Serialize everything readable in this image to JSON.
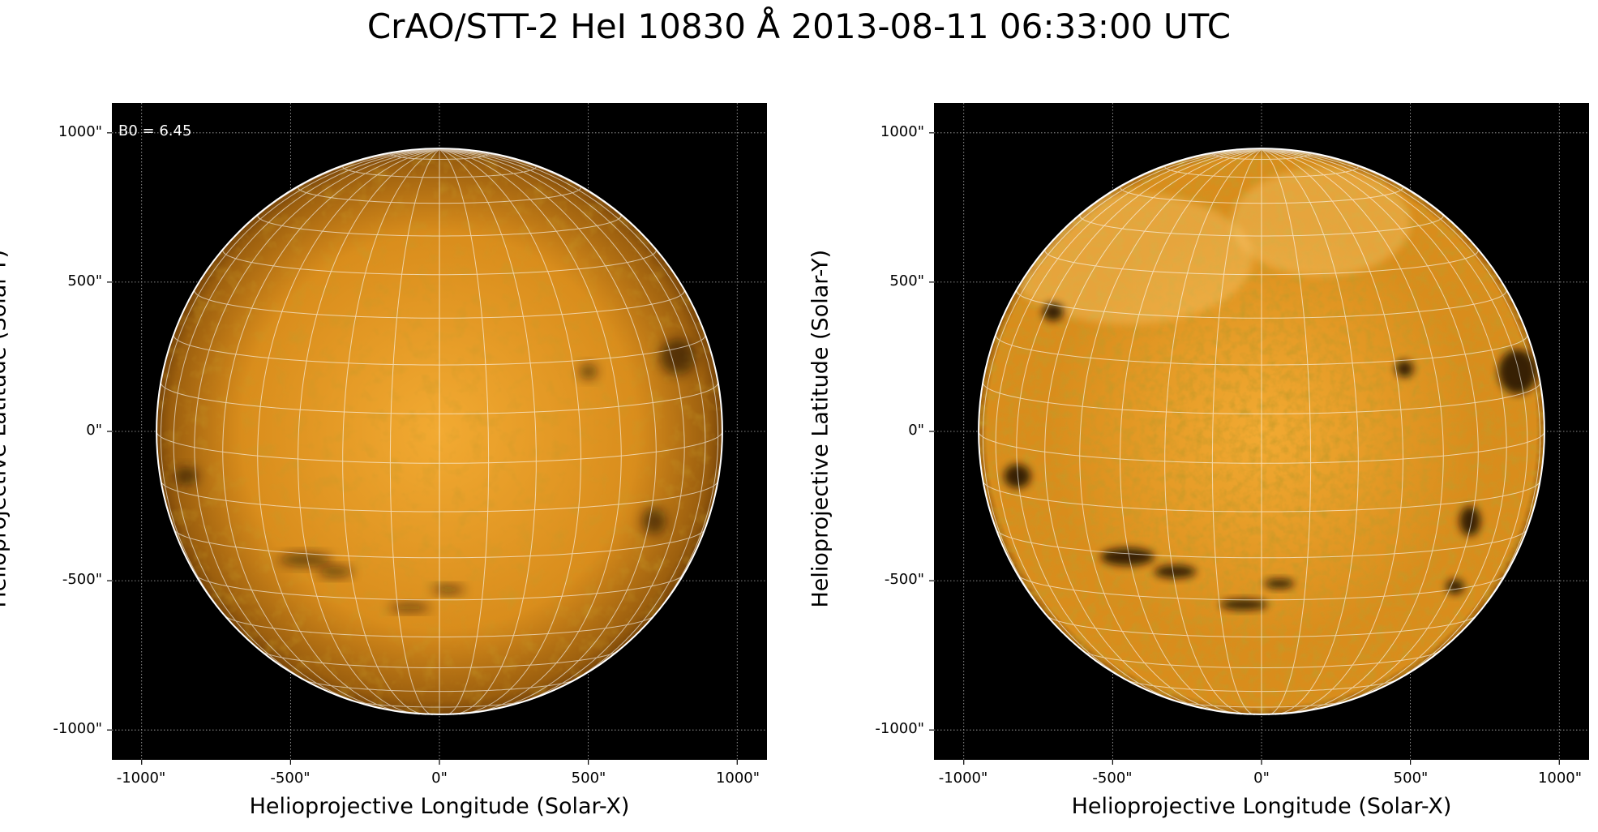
{
  "title": "CrAO/STT-2 HeI 10830 Å 2013-08-11 06:33:00 UTC",
  "colors": {
    "background": "#000000",
    "disk_light": "#f2aa32",
    "disk_base": "#d98d1c",
    "disk_dark": "#9c5f0e",
    "limb_line": "#ffffff",
    "grid_line": "#ffffff",
    "axis_grid": "#b0b0b0"
  },
  "axes_common": {
    "xlabel": "Helioprojective Longitude (Solar-X)",
    "ylabel": "Helioprojective Latitude (Solar-Y)",
    "xticks": [
      "-1000\"",
      "-500\"",
      "0\"",
      "500\"",
      "1000\""
    ],
    "yticks": [
      "1000\"",
      "500\"",
      "0\"",
      "-500\"",
      "-1000\""
    ],
    "tick_values": [
      -1000,
      -500,
      0,
      500,
      1000
    ],
    "xlim": [
      -1100,
      1100
    ],
    "ylim": [
      -1100,
      1100
    ]
  },
  "panels": [
    {
      "id": "left",
      "annotation": "B0 = 6.45",
      "style": "smooth",
      "dark_features": [
        {
          "x": -850,
          "y": -150,
          "rx": 40,
          "ry": 30
        },
        {
          "x": -450,
          "y": -430,
          "rx": 90,
          "ry": 22
        },
        {
          "x": -350,
          "y": -470,
          "rx": 60,
          "ry": 18
        },
        {
          "x": 500,
          "y": 200,
          "rx": 30,
          "ry": 25
        },
        {
          "x": 800,
          "y": 250,
          "rx": 60,
          "ry": 60
        },
        {
          "x": 720,
          "y": -300,
          "rx": 40,
          "ry": 45
        },
        {
          "x": -100,
          "y": -590,
          "rx": 70,
          "ry": 14
        },
        {
          "x": 30,
          "y": -530,
          "rx": 55,
          "ry": 14
        }
      ]
    },
    {
      "id": "right",
      "annotation": "",
      "style": "enhanced",
      "dark_features": [
        {
          "x": -820,
          "y": -150,
          "rx": 45,
          "ry": 40
        },
        {
          "x": -450,
          "y": -420,
          "rx": 90,
          "ry": 30
        },
        {
          "x": -290,
          "y": -470,
          "rx": 70,
          "ry": 22
        },
        {
          "x": 480,
          "y": 210,
          "rx": 30,
          "ry": 28
        },
        {
          "x": 860,
          "y": 200,
          "rx": 65,
          "ry": 75
        },
        {
          "x": 700,
          "y": -300,
          "rx": 35,
          "ry": 50
        },
        {
          "x": 650,
          "y": -520,
          "rx": 30,
          "ry": 25
        },
        {
          "x": -60,
          "y": -580,
          "rx": 80,
          "ry": 18
        },
        {
          "x": 60,
          "y": -510,
          "rx": 50,
          "ry": 16
        },
        {
          "x": -700,
          "y": 400,
          "rx": 35,
          "ry": 30
        }
      ],
      "bright_regions": [
        {
          "x": -450,
          "y": 580,
          "rx": 420,
          "ry": 220
        },
        {
          "x": 200,
          "y": 700,
          "rx": 300,
          "ry": 180
        }
      ]
    }
  ]
}
